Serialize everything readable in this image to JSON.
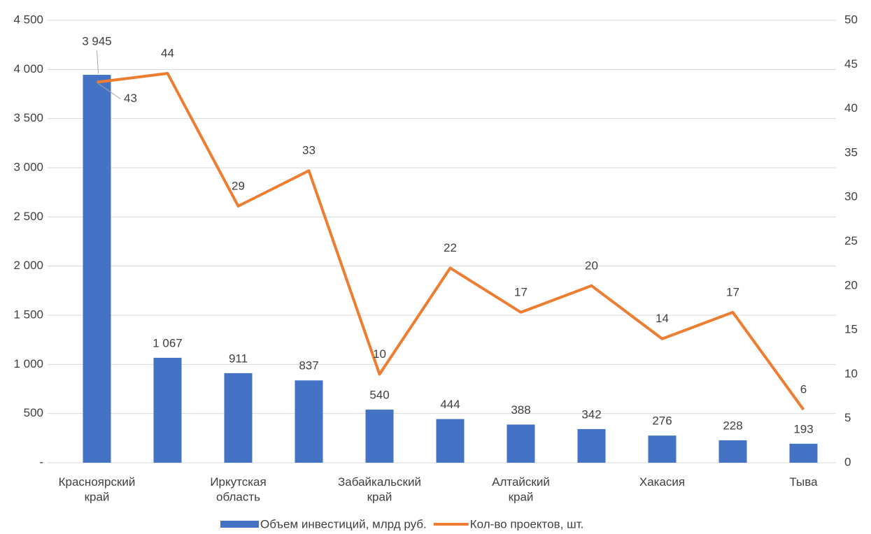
{
  "chart_data": {
    "type": "bar",
    "categories": [
      "Красноярский край",
      null,
      "Иркутская область",
      null,
      "Забайкальский край",
      null,
      "Алтайский край",
      null,
      "Хакасия",
      null,
      "Тыва"
    ],
    "series": [
      {
        "name": "Объем инвестиций, млрд руб.",
        "type": "bar",
        "color": "#4472c4",
        "values": [
          3945,
          1067,
          911,
          837,
          540,
          444,
          388,
          342,
          276,
          228,
          193
        ],
        "value_labels": [
          "3 945",
          "1 067",
          "911",
          "837",
          "540",
          "444",
          "388",
          "342",
          "276",
          "228",
          "193"
        ]
      },
      {
        "name": "Кол-во проектов, шт.",
        "type": "line",
        "axis": "y2",
        "color": "#ed7d31",
        "values": [
          43,
          44,
          29,
          33,
          10,
          22,
          17,
          20,
          14,
          17,
          6
        ]
      }
    ],
    "ylim": [
      0,
      4500
    ],
    "yticks": [
      {
        "value": 0,
        "label": "-"
      },
      500,
      {
        "value": 1000,
        "label": "1 000"
      },
      {
        "value": 1500,
        "label": "1 500"
      },
      {
        "value": 2000,
        "label": "2 000"
      },
      {
        "value": 2500,
        "label": "2 500"
      },
      {
        "value": 3000,
        "label": "3 000"
      },
      {
        "value": 3500,
        "label": "3 500"
      },
      {
        "value": 4000,
        "label": "4 000"
      },
      {
        "value": 4500,
        "label": "4 500"
      }
    ],
    "y2lim": [
      0,
      50
    ],
    "y2ticks": [
      0,
      5,
      10,
      15,
      20,
      25,
      30,
      35,
      40,
      45,
      50
    ],
    "grid": true,
    "legend": "bottom"
  }
}
